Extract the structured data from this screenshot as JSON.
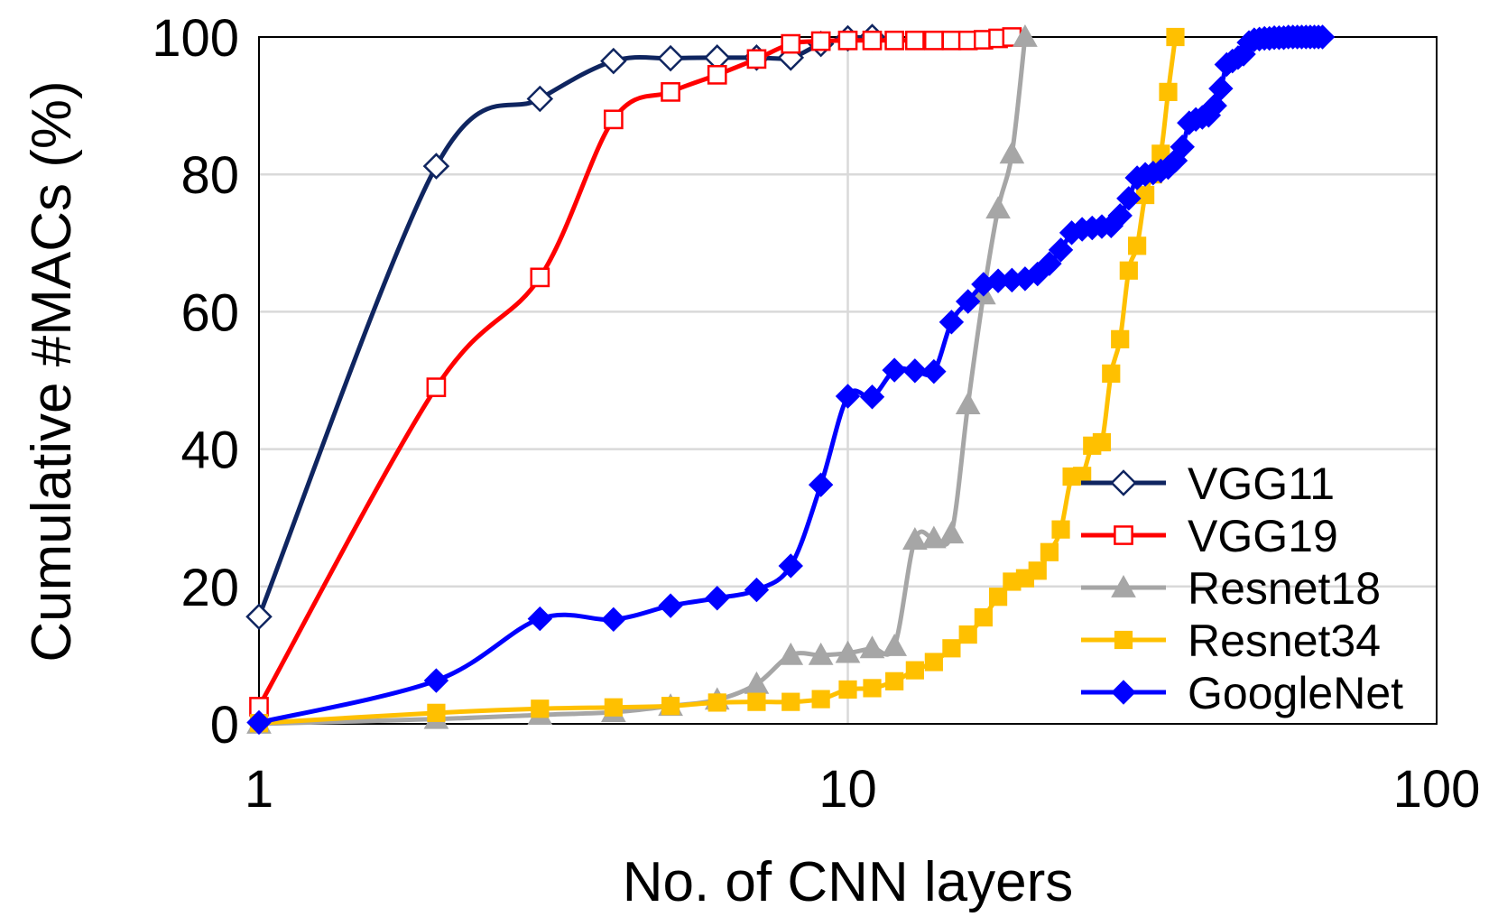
{
  "chart_data": {
    "type": "line",
    "title": "",
    "xlabel": "No. of CNN layers",
    "ylabel": "Cumulative #MACs (%)",
    "x_scale": "log",
    "xlim": [
      1,
      100
    ],
    "ylim": [
      0,
      100
    ],
    "x_ticks": [
      1,
      10,
      100
    ],
    "x_tick_labels": [
      "1",
      "10",
      "100"
    ],
    "y_ticks": [
      0,
      20,
      40,
      60,
      80,
      100
    ],
    "y_tick_labels": [
      "0",
      "20",
      "40",
      "60",
      "80",
      "100"
    ],
    "grid": true,
    "legend_position": "bottom-right",
    "series": [
      {
        "name": "VGG11",
        "color": "#0f2560",
        "marker": "diamond-open",
        "points": [
          [
            1,
            15.6
          ],
          [
            2,
            81.2
          ],
          [
            3,
            91.0
          ],
          [
            4,
            96.5
          ],
          [
            5,
            96.9
          ],
          [
            6,
            97.0
          ],
          [
            7,
            97.0
          ],
          [
            8,
            97.0
          ],
          [
            9,
            99.0
          ],
          [
            10,
            99.8
          ],
          [
            11,
            100
          ]
        ]
      },
      {
        "name": "VGG19",
        "color": "#ff0000",
        "marker": "square-open",
        "points": [
          [
            1,
            2.5
          ],
          [
            2,
            49.0
          ],
          [
            3,
            65.0
          ],
          [
            4,
            88.0
          ],
          [
            5,
            92.0
          ],
          [
            6,
            94.5
          ],
          [
            7,
            96.8
          ],
          [
            8,
            99.0
          ],
          [
            9,
            99.4
          ],
          [
            10,
            99.5
          ],
          [
            11,
            99.5
          ],
          [
            12,
            99.5
          ],
          [
            13,
            99.5
          ],
          [
            14,
            99.5
          ],
          [
            15,
            99.5
          ],
          [
            16,
            99.5
          ],
          [
            17,
            99.6
          ],
          [
            18,
            99.8
          ],
          [
            19,
            100
          ]
        ]
      },
      {
        "name": "Resnet18",
        "color": "#a6a6a6",
        "marker": "triangle",
        "points": [
          [
            1,
            0.0
          ],
          [
            2,
            0.7
          ],
          [
            3,
            1.3
          ],
          [
            4,
            1.7
          ],
          [
            5,
            2.6
          ],
          [
            6,
            3.5
          ],
          [
            7,
            5.8
          ],
          [
            8,
            10.0
          ],
          [
            9,
            10.0
          ],
          [
            10,
            10.3
          ],
          [
            11,
            11.0
          ],
          [
            12,
            11.3
          ],
          [
            13,
            26.8
          ],
          [
            14,
            27.0
          ],
          [
            15,
            27.7
          ],
          [
            16,
            46.5
          ],
          [
            17,
            62.5
          ],
          [
            18,
            75.0
          ],
          [
            19,
            83.0
          ],
          [
            20,
            100
          ]
        ]
      },
      {
        "name": "Resnet34",
        "color": "#ffc000",
        "marker": "square",
        "points": [
          [
            1,
            0.1
          ],
          [
            2,
            1.6
          ],
          [
            3,
            2.2
          ],
          [
            4,
            2.4
          ],
          [
            5,
            2.6
          ],
          [
            6,
            3.1
          ],
          [
            7,
            3.2
          ],
          [
            8,
            3.2
          ],
          [
            9,
            3.6
          ],
          [
            10,
            5.0
          ],
          [
            11,
            5.2
          ],
          [
            12,
            6.2
          ],
          [
            13,
            7.8
          ],
          [
            14,
            9.0
          ],
          [
            15,
            11.0
          ],
          [
            16,
            13.0
          ],
          [
            17,
            15.5
          ],
          [
            18,
            18.5
          ],
          [
            19,
            20.7
          ],
          [
            20,
            21.2
          ],
          [
            21,
            22.3
          ],
          [
            22,
            25.0
          ],
          [
            23,
            28.3
          ],
          [
            24,
            36.0
          ],
          [
            25,
            36.1
          ],
          [
            26,
            40.5
          ],
          [
            27,
            41.0
          ],
          [
            28,
            51.0
          ],
          [
            29,
            56.0
          ],
          [
            30,
            66.0
          ],
          [
            31,
            69.6
          ],
          [
            32,
            77.0
          ],
          [
            33,
            80.0
          ],
          [
            34,
            83.0
          ],
          [
            35,
            92.0
          ],
          [
            36,
            100
          ]
        ]
      },
      {
        "name": "GoogleNet",
        "color": "#0000ff",
        "marker": "diamond",
        "points": [
          [
            1,
            0.2
          ],
          [
            2,
            6.3
          ],
          [
            3,
            15.3
          ],
          [
            4,
            15.2
          ],
          [
            5,
            17.2
          ],
          [
            6,
            18.3
          ],
          [
            7,
            19.5
          ],
          [
            8,
            23.0
          ],
          [
            9,
            34.8
          ],
          [
            10,
            47.7
          ],
          [
            11,
            47.6
          ],
          [
            12,
            51.5
          ],
          [
            13,
            51.4
          ],
          [
            14,
            51.3
          ],
          [
            15,
            58.5
          ],
          [
            16,
            61.5
          ],
          [
            17,
            64.0
          ],
          [
            18,
            64.5
          ],
          [
            19,
            64.6
          ],
          [
            20,
            64.8
          ],
          [
            21,
            65.5
          ],
          [
            22,
            67.0
          ],
          [
            23,
            69.0
          ],
          [
            24,
            71.5
          ],
          [
            25,
            72.0
          ],
          [
            26,
            72.2
          ],
          [
            27,
            72.4
          ],
          [
            28,
            72.5
          ],
          [
            29,
            74.0
          ],
          [
            30,
            76.5
          ],
          [
            31,
            79.5
          ],
          [
            32,
            80.0
          ],
          [
            33,
            80.2
          ],
          [
            34,
            80.5
          ],
          [
            35,
            81.0
          ],
          [
            36,
            82.0
          ],
          [
            37,
            84.0
          ],
          [
            38,
            87.5
          ],
          [
            39,
            88.0
          ],
          [
            40,
            88.3
          ],
          [
            41,
            88.6
          ],
          [
            42,
            90.0
          ],
          [
            43,
            92.5
          ],
          [
            44,
            96.0
          ],
          [
            45,
            96.5
          ],
          [
            46,
            97.0
          ],
          [
            47,
            97.5
          ],
          [
            48,
            99.2
          ],
          [
            49,
            99.6
          ],
          [
            50,
            99.7
          ],
          [
            51,
            99.8
          ],
          [
            52,
            99.8
          ],
          [
            53,
            99.9
          ],
          [
            54,
            99.9
          ],
          [
            55,
            99.9
          ],
          [
            56,
            100
          ],
          [
            57,
            100
          ],
          [
            58,
            100
          ],
          [
            59,
            100
          ],
          [
            60,
            100
          ],
          [
            61,
            100
          ],
          [
            62,
            100
          ],
          [
            63,
            100
          ],
          [
            64,
            100
          ]
        ]
      }
    ]
  }
}
